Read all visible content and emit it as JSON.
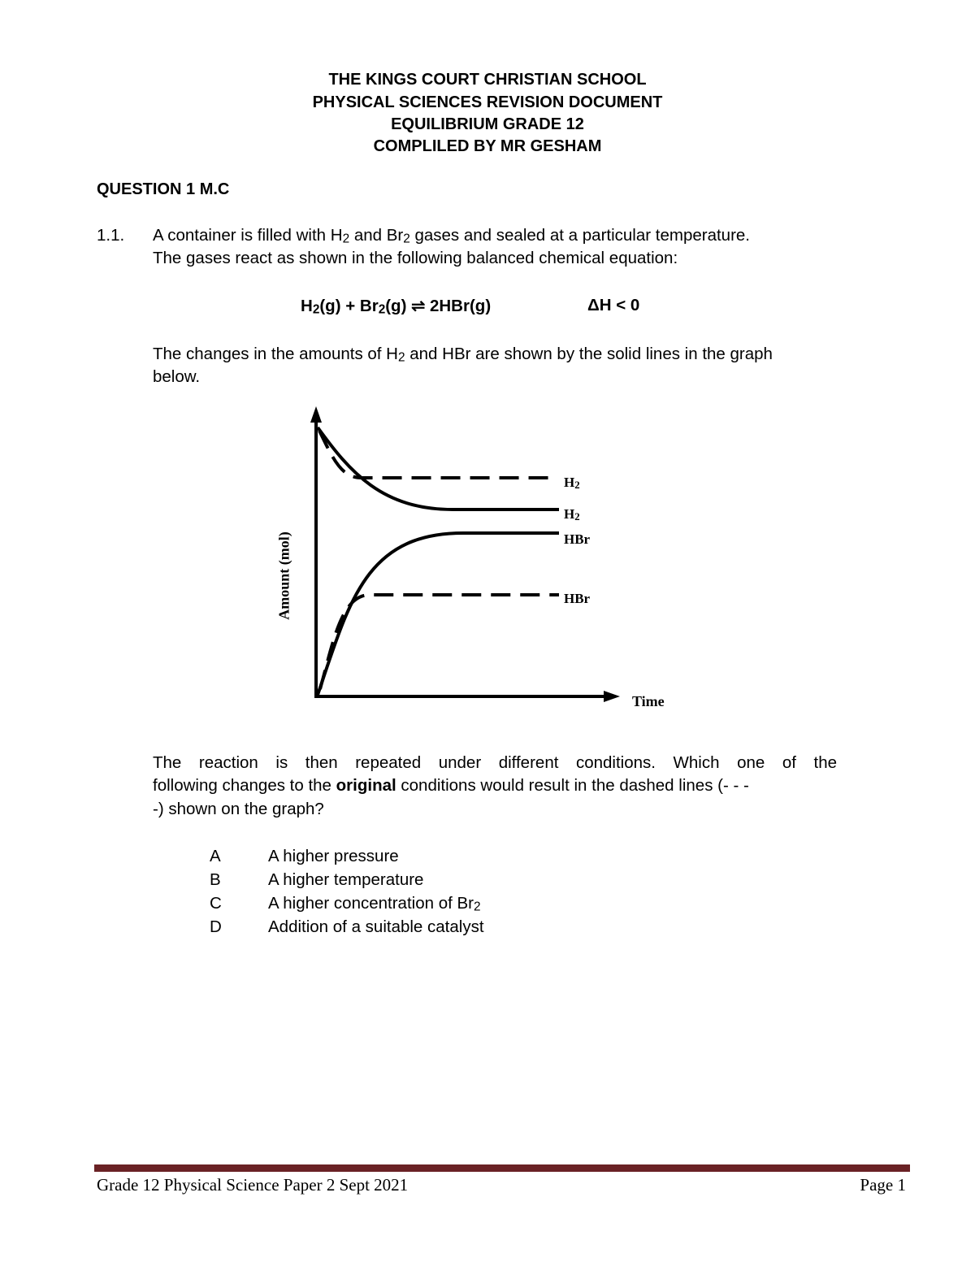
{
  "header": {
    "line1": "THE KINGS COURT CHRISTIAN SCHOOL",
    "line2": "PHYSICAL SCIENCES REVISION DOCUMENT",
    "line3": "EQUILIBRIUM GRADE 12",
    "line4": "COMPLILED BY MR GESHAM"
  },
  "question": {
    "heading": "QUESTION 1 M.C",
    "number": "1.1.",
    "intro1_a": "A container is filled with H",
    "intro1_b": " and Br",
    "intro1_c": " gases and sealed at a particular temperature.",
    "intro2": "The gases react as shown in the following balanced chemical equation:",
    "equation": {
      "h2": "H",
      "sub2": "2",
      "part2": "(g) + Br",
      "part3": "(g) ⇌ 2HBr(g)",
      "enthalpy": "ΔH < 0"
    },
    "graph_text_a": "The changes in the amounts of H",
    "graph_text_b": " and HBr are shown by the solid lines in the graph",
    "graph_text_c": "below.",
    "repeat_text1": "The reaction is then repeated under different conditions. Which one of the",
    "repeat_text2_a": "following changes to the ",
    "repeat_text2_bold": "original",
    "repeat_text2_b": " conditions would result in the dashed lines (- - -",
    "repeat_text3": "-) shown on the graph?",
    "options": [
      {
        "letter": "A",
        "text": "A higher pressure",
        "sub": ""
      },
      {
        "letter": "B",
        "text": "A higher temperature",
        "sub": ""
      },
      {
        "letter": "C",
        "text": "A higher concentration of Br",
        "sub": "2"
      },
      {
        "letter": "D",
        "text": "Addition of a suitable catalyst",
        "sub": ""
      }
    ]
  },
  "chart_data": {
    "type": "line",
    "xlabel": "Time",
    "ylabel": "Amount (mol)",
    "grid": false,
    "series": [
      {
        "name": "H2",
        "style": "solid",
        "trend": "decreases then levels at lower value"
      },
      {
        "name": "H2",
        "style": "dashed",
        "trend": "decreases faster, levels at higher value"
      },
      {
        "name": "HBr",
        "style": "solid",
        "trend": "increases then levels at higher value"
      },
      {
        "name": "HBr",
        "style": "dashed",
        "trend": "increases faster, levels at lower value"
      }
    ],
    "labels": {
      "h2": "H",
      "sub": "2",
      "hbr": "HBr"
    }
  },
  "footer": {
    "left": "Grade 12 Physical Science Paper 2 Sept 2021",
    "right": "Page 1",
    "rule_color": "#6a2225"
  }
}
